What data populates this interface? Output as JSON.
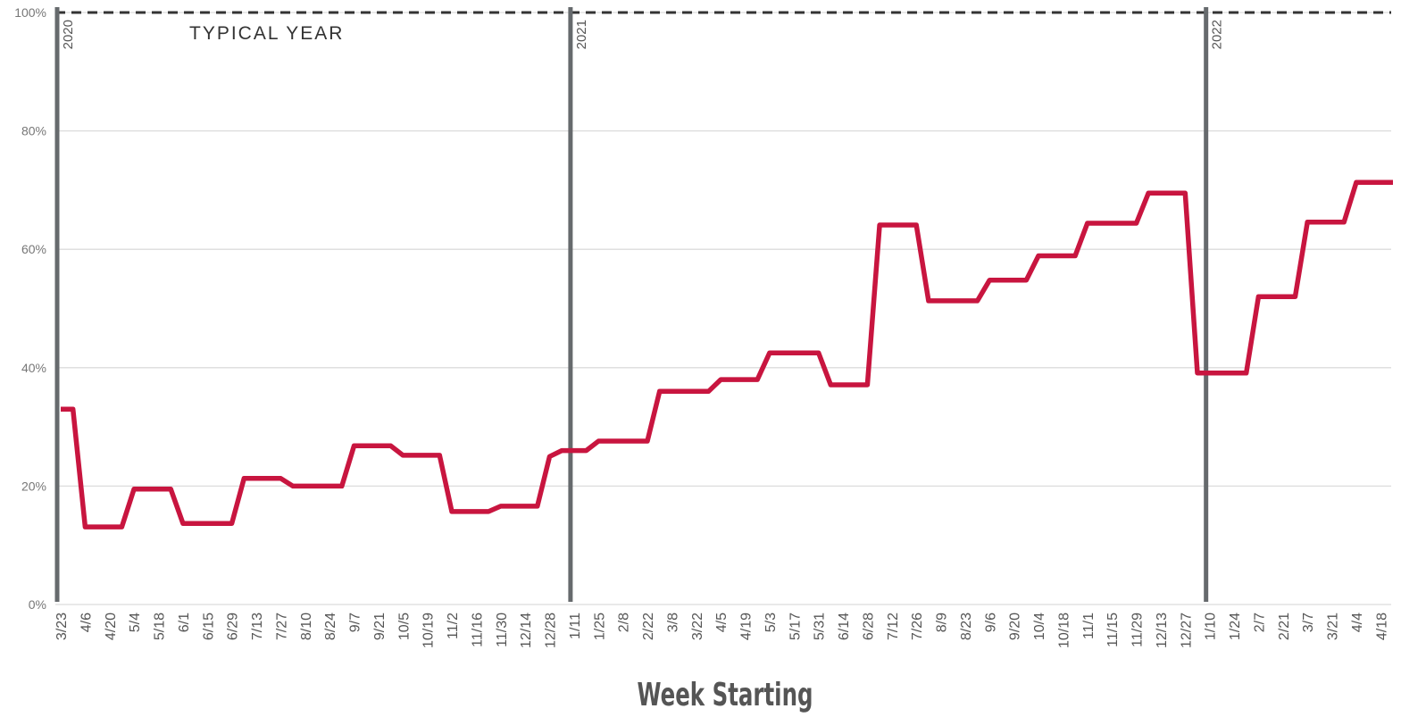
{
  "chart_data": {
    "type": "line",
    "x_label": "Week Starting",
    "categories": [
      "3/23",
      null,
      "4/6",
      null,
      "4/20",
      null,
      "5/4",
      null,
      "5/18",
      null,
      "6/1",
      null,
      "6/15",
      null,
      "6/29",
      null,
      "7/13",
      null,
      "7/27",
      null,
      "8/10",
      null,
      "8/24",
      null,
      "9/7",
      null,
      "9/21",
      null,
      "10/5",
      null,
      "10/19",
      null,
      "11/2",
      null,
      "11/16",
      null,
      "11/30",
      null,
      "12/14",
      null,
      "12/28",
      null,
      "1/11",
      null,
      "1/25",
      null,
      "2/8",
      null,
      "2/22",
      null,
      "3/8",
      null,
      "3/22",
      null,
      "4/5",
      null,
      "4/19",
      null,
      "5/3",
      null,
      "5/17",
      null,
      "5/31",
      null,
      "6/14",
      null,
      "6/28",
      null,
      "7/12",
      null,
      "7/26",
      null,
      "8/9",
      null,
      "8/23",
      null,
      "9/6",
      null,
      "9/20",
      null,
      "10/4",
      null,
      "10/18",
      null,
      "11/1",
      null,
      "11/15",
      null,
      "11/29",
      null,
      "12/13",
      null,
      "12/27",
      null,
      "1/10",
      null,
      "1/24",
      null,
      "2/7",
      null,
      "2/21",
      null,
      "3/7",
      null,
      "3/21",
      null,
      "4/4",
      null,
      "4/18",
      null
    ],
    "values": [
      33.0,
      33.0,
      13.1,
      13.1,
      13.1,
      13.1,
      19.5,
      19.5,
      19.5,
      19.5,
      13.7,
      13.7,
      13.7,
      13.7,
      13.7,
      21.3,
      21.3,
      21.3,
      21.3,
      20.0,
      20.0,
      20.0,
      20.0,
      20.0,
      26.8,
      26.8,
      26.8,
      26.8,
      25.2,
      25.2,
      25.2,
      25.2,
      15.7,
      15.7,
      15.7,
      15.7,
      16.6,
      16.6,
      16.6,
      16.6,
      25.0,
      26.0,
      26.0,
      26.0,
      27.6,
      27.6,
      27.6,
      27.6,
      27.6,
      36.0,
      36.0,
      36.0,
      36.0,
      36.0,
      38.0,
      38.0,
      38.0,
      38.0,
      42.5,
      42.5,
      42.5,
      42.5,
      42.5,
      37.1,
      37.1,
      37.1,
      37.1,
      64.1,
      64.1,
      64.1,
      64.1,
      51.3,
      51.3,
      51.3,
      51.3,
      51.3,
      54.8,
      54.8,
      54.8,
      54.8,
      58.9,
      58.9,
      58.9,
      58.9,
      64.4,
      64.4,
      64.4,
      64.4,
      64.4,
      69.5,
      69.5,
      69.5,
      69.5,
      39.1,
      39.1,
      39.1,
      39.1,
      39.1,
      52.0,
      52.0,
      52.0,
      52.0,
      64.6,
      64.6,
      64.6,
      64.6,
      71.3,
      71.3,
      71.3,
      71.3
    ],
    "color": "#c8153f",
    "ylim": [
      0,
      100
    ],
    "yticks": [
      {
        "value": 0,
        "label": "0%"
      },
      {
        "value": 20,
        "label": "20%"
      },
      {
        "value": 40,
        "label": "40%"
      },
      {
        "value": 60,
        "label": "60%"
      },
      {
        "value": 80,
        "label": "80%"
      },
      {
        "value": 100,
        "label": "100%"
      }
    ],
    "grid": true,
    "reference_line": {
      "text": "TYPICAL YEAR",
      "value": 100
    },
    "year_markers": [
      {
        "label": "2020",
        "category": "3/23"
      },
      {
        "label": "2021",
        "category": "1/11"
      },
      {
        "label": "2022",
        "category": "1/10"
      }
    ]
  }
}
